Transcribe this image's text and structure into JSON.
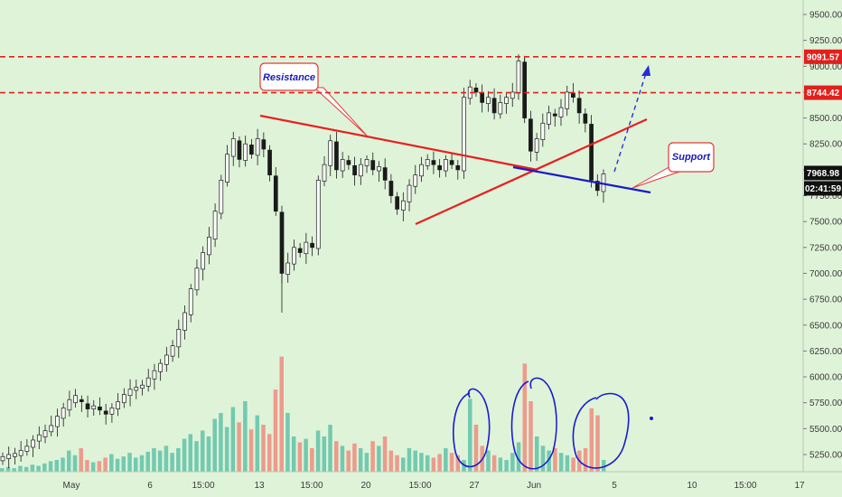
{
  "chart_data": {
    "type": "candlestick",
    "instrument_hint": "BTC/USD style price chart",
    "y_axis": {
      "side": "right",
      "ylim": [
        5100,
        9600
      ],
      "ticks": [
        9500,
        9250,
        9000,
        8750,
        8500,
        8250,
        8000,
        7750,
        7500,
        7250,
        7000,
        6750,
        6500,
        6250,
        6000,
        5750,
        5500,
        5250
      ],
      "tick_labels": [
        "9500.00",
        "9250.00",
        "9000.00",
        "8750.00",
        "8500.00",
        "8250.00",
        "8000.00",
        "7750.00",
        "7500.00",
        "7250.00",
        "7000.00",
        "6750.00",
        "6500.00",
        "6250.00",
        "6000.00",
        "5750.00",
        "5500.00",
        "5250.00"
      ]
    },
    "x_axis": {
      "tick_labels": [
        "May",
        "6",
        "15:00",
        "13",
        "15:00",
        "20",
        "15:00",
        "27",
        "Jun",
        "5",
        "10",
        "15:00",
        "17"
      ]
    },
    "price_tags": [
      {
        "value": "9091.57",
        "color": "#e0211c",
        "text_color": "#ffffff",
        "style": "dashed-line"
      },
      {
        "value": "8744.42",
        "color": "#e0211c",
        "text_color": "#ffffff",
        "style": "dashed-line"
      },
      {
        "value": "7968.98",
        "color": "#111111",
        "text_color": "#ffffff",
        "style": "current-price"
      },
      {
        "value": "02:41:59",
        "color": "#111111",
        "text_color": "#ffffff",
        "style": "countdown"
      }
    ],
    "drawn_lines": [
      {
        "name": "resistance",
        "color": "#e82020",
        "from": {
          "x": "May 13",
          "y": 8520
        },
        "to": {
          "x": "May 30",
          "y": 8060
        }
      },
      {
        "name": "rising-support",
        "color": "#e82020",
        "from": {
          "x": "May 22",
          "y": 7500
        },
        "to": {
          "x": "Jun 7",
          "y": 8490
        }
      },
      {
        "name": "support",
        "color": "#1a1ac9",
        "from": {
          "x": "May 29",
          "y": 8070
        },
        "to": {
          "x": "Jun 7",
          "y": 7810
        }
      }
    ],
    "annotations": [
      {
        "label": "Resistance",
        "type": "callout"
      },
      {
        "label": "Support",
        "type": "callout"
      }
    ],
    "colors": {
      "background": "#dff3d9",
      "candle": "#1a1a1a",
      "volume_up": "#5fc2a8",
      "volume_down": "#f08b7e",
      "grid": "none"
    },
    "candles_close_path": [
      [
        5190,
        5230
      ],
      [
        5210,
        5250
      ],
      [
        5230,
        5260
      ],
      [
        5240,
        5290
      ],
      [
        5280,
        5330
      ],
      [
        5320,
        5390
      ],
      [
        5380,
        5440
      ],
      [
        5420,
        5480
      ],
      [
        5470,
        5530
      ],
      [
        5520,
        5620
      ],
      [
        5600,
        5700
      ],
      [
        5680,
        5780
      ],
      [
        5750,
        5820
      ],
      [
        5780,
        5760
      ],
      [
        5740,
        5690
      ],
      [
        5690,
        5720
      ],
      [
        5710,
        5680
      ],
      [
        5670,
        5640
      ],
      [
        5640,
        5700
      ],
      [
        5690,
        5760
      ],
      [
        5750,
        5830
      ],
      [
        5820,
        5880
      ],
      [
        5870,
        5900
      ],
      [
        5890,
        5920
      ],
      [
        5910,
        5990
      ],
      [
        5980,
        6060
      ],
      [
        6050,
        6130
      ],
      [
        6120,
        6210
      ],
      [
        6200,
        6300
      ],
      [
        6290,
        6460
      ],
      [
        6450,
        6620
      ],
      [
        6600,
        6850
      ],
      [
        6840,
        7050
      ],
      [
        7040,
        7200
      ],
      [
        7180,
        7350
      ],
      [
        7330,
        7600
      ],
      [
        7580,
        7900
      ],
      [
        7880,
        8150
      ],
      [
        8130,
        8300
      ],
      [
        8280,
        8100
      ],
      [
        8090,
        8250
      ],
      [
        8240,
        8150
      ],
      [
        8140,
        8300
      ],
      [
        8290,
        8200
      ],
      [
        8190,
        7950
      ],
      [
        7940,
        7600
      ],
      [
        7590,
        7000
      ],
      [
        6990,
        7100
      ],
      [
        7090,
        7250
      ],
      [
        7240,
        7200
      ],
      [
        7190,
        7300
      ],
      [
        7290,
        7250
      ],
      [
        7240,
        7900
      ],
      [
        7890,
        8050
      ],
      [
        8040,
        8280
      ],
      [
        8270,
        8000
      ],
      [
        7990,
        8100
      ],
      [
        8090,
        8050
      ],
      [
        8040,
        7950
      ],
      [
        7940,
        8050
      ],
      [
        8040,
        8100
      ],
      [
        8090,
        8000
      ],
      [
        7990,
        8030
      ],
      [
        8020,
        7900
      ],
      [
        7890,
        7750
      ],
      [
        7740,
        7620
      ],
      [
        7610,
        7700
      ],
      [
        7690,
        7850
      ],
      [
        7840,
        7950
      ],
      [
        7940,
        8050
      ],
      [
        8040,
        8100
      ],
      [
        8090,
        8050
      ],
      [
        8040,
        8000
      ],
      [
        7990,
        8100
      ],
      [
        8090,
        8050
      ],
      [
        8040,
        8000
      ],
      [
        7990,
        8700
      ],
      [
        8690,
        8800
      ],
      [
        8790,
        8750
      ],
      [
        8740,
        8650
      ],
      [
        8640,
        8700
      ],
      [
        8690,
        8550
      ],
      [
        8540,
        8650
      ],
      [
        8640,
        8700
      ],
      [
        8690,
        8750
      ],
      [
        8740,
        9050
      ],
      [
        9040,
        8500
      ],
      [
        8490,
        8180
      ],
      [
        8170,
        8300
      ],
      [
        8290,
        8450
      ],
      [
        8440,
        8550
      ],
      [
        8540,
        8520
      ],
      [
        8510,
        8600
      ],
      [
        8590,
        8750
      ],
      [
        8740,
        8700
      ],
      [
        8690,
        8550
      ],
      [
        8540,
        8450
      ],
      [
        8440,
        7900
      ],
      [
        7890,
        7800
      ],
      [
        7790,
        7960
      ]
    ],
    "volume_levels": [
      0.03,
      0.04,
      0.03,
      0.05,
      0.04,
      0.06,
      0.05,
      0.07,
      0.09,
      0.1,
      0.12,
      0.18,
      0.14,
      0.2,
      0.1,
      0.08,
      0.09,
      0.12,
      0.15,
      0.11,
      0.13,
      0.16,
      0.12,
      0.14,
      0.17,
      0.2,
      0.18,
      0.22,
      0.16,
      0.2,
      0.28,
      0.32,
      0.26,
      0.35,
      0.3,
      0.45,
      0.5,
      0.38,
      0.55,
      0.42,
      0.6,
      0.36,
      0.48,
      0.4,
      0.32,
      0.7,
      0.98,
      0.5,
      0.3,
      0.25,
      0.28,
      0.2,
      0.35,
      0.3,
      0.4,
      0.26,
      0.22,
      0.18,
      0.24,
      0.2,
      0.16,
      0.26,
      0.22,
      0.3,
      0.18,
      0.14,
      0.12,
      0.2,
      0.18,
      0.16,
      0.14,
      0.12,
      0.15,
      0.2,
      0.16,
      0.14,
      0.1,
      0.62,
      0.4,
      0.22,
      0.18,
      0.14,
      0.12,
      0.1,
      0.16,
      0.25,
      0.92,
      0.6,
      0.3,
      0.22,
      0.18,
      0.2,
      0.16,
      0.14,
      0.12,
      0.18,
      0.2,
      0.54,
      0.48,
      0.1
    ]
  }
}
